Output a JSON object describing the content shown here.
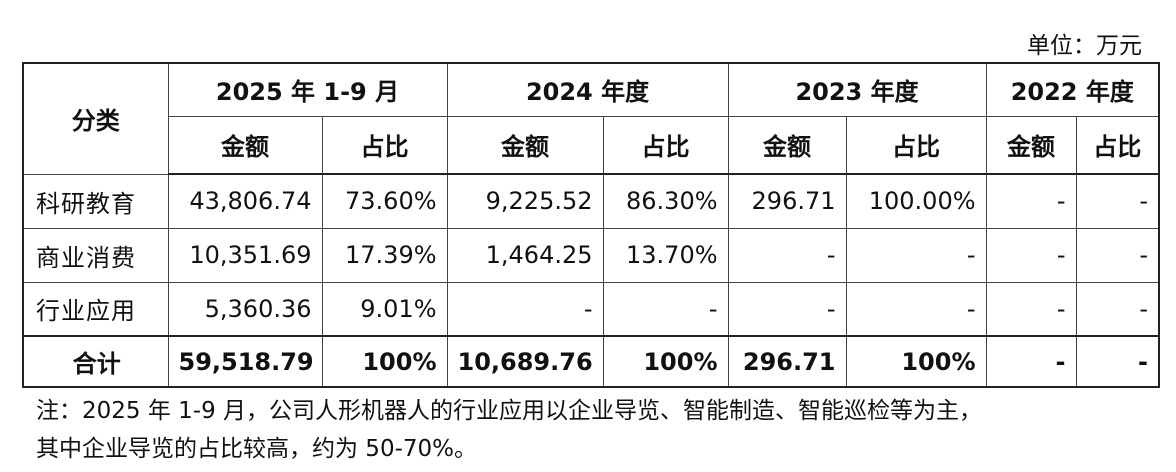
{
  "unit": "单位：万元",
  "table": {
    "corner": "分类",
    "periods": [
      "2025 年 1-9 月",
      "2024 年度",
      "2023 年度",
      "2022 年度"
    ],
    "subheaders": [
      "金额",
      "占比",
      "金额",
      "占比",
      "金额",
      "占比",
      "金额",
      "占比"
    ],
    "rows": [
      [
        "科研教育",
        "43,806.74",
        "73.60%",
        "9,225.52",
        "86.30%",
        "296.71",
        "100.00%",
        "-",
        "-"
      ],
      [
        "商业消费",
        "10,351.69",
        "17.39%",
        "1,464.25",
        "13.70%",
        "-",
        "-",
        "-",
        "-"
      ],
      [
        "行业应用",
        "5,360.36",
        "9.01%",
        "-",
        "-",
        "-",
        "-",
        "-",
        "-"
      ],
      [
        "合计",
        "59,518.79",
        "100%",
        "10,689.76",
        "100%",
        "296.71",
        "100%",
        "-",
        "-"
      ]
    ]
  },
  "note": [
    "注：2025 年 1-9 月，公司人形机器人的行业应用以企业导览、智能制造、智能巡检等为主，",
    "其中企业导览的占比较高，约为 50-70%。"
  ]
}
